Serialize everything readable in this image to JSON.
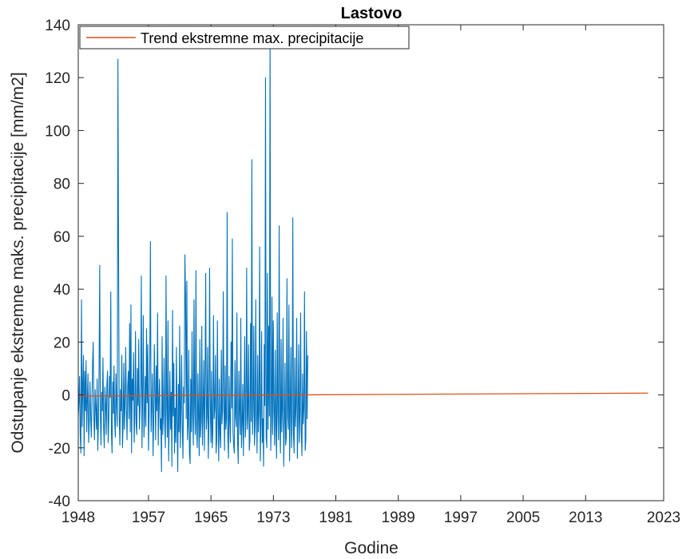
{
  "chart_data": {
    "type": "line",
    "title": "Lastovo",
    "xlabel": "Godine",
    "ylabel": "Odstupanje ekstremne maks. precipitacije [mm/m2]",
    "xlim": [
      1948,
      2023
    ],
    "ylim": [
      -40,
      140
    ],
    "x_ticks": [
      "1948",
      "1957",
      "1965",
      "1973",
      "1981",
      "1989",
      "1997",
      "2005",
      "2013",
      "2023"
    ],
    "y_ticks": [
      "-40",
      "-20",
      "0",
      "20",
      "40",
      "60",
      "80",
      "100",
      "120",
      "140"
    ],
    "legend": {
      "placement": "top-left",
      "entries": [
        "Trend ekstremne max. precipitacije"
      ]
    },
    "grid": false,
    "colors": {
      "series": "#0072BD",
      "trend": "#D95319"
    },
    "series": [
      {
        "name": "",
        "style": "monthly values",
        "x_start": 1948.0,
        "x_step": 0.0833,
        "values": [
          -8,
          -3,
          7,
          -15,
          -22,
          36,
          -12,
          4,
          15,
          -23,
          9,
          -6,
          13,
          -14,
          -2,
          8,
          -18,
          -10,
          5,
          -7,
          -16,
          -4,
          12,
          20,
          -9,
          -17,
          2,
          -5,
          -13,
          6,
          -21,
          -11,
          10,
          49,
          -8,
          -19,
          1,
          -6,
          14,
          -12,
          -20,
          3,
          -3,
          -15,
          4,
          9,
          -18,
          -9,
          7,
          -1,
          39,
          -14,
          -22,
          5,
          -7,
          11,
          -10,
          -16,
          8,
          -4,
          -12,
          127,
          51,
          -8,
          -19,
          2,
          -6,
          15,
          -20,
          -11,
          12,
          -13,
          -3,
          18,
          -5,
          -17,
          3,
          9,
          -9,
          27,
          -14,
          34,
          -22,
          6,
          -2,
          16,
          -18,
          -7,
          24,
          -11,
          -15,
          10,
          -4,
          21,
          -13,
          -6,
          4,
          45,
          -20,
          -1,
          30,
          -16,
          -9,
          7,
          -12,
          25,
          -3,
          19,
          -21,
          -8,
          13,
          58,
          -14,
          -5,
          8,
          -23,
          -10,
          19,
          2,
          -17,
          11,
          -6,
          31,
          -19,
          -2,
          6,
          -13,
          -9,
          -29,
          22,
          -15,
          -7,
          14,
          -11,
          -20,
          45,
          -4,
          -16,
          28,
          -25,
          -9,
          9,
          -13,
          1,
          -27,
          32,
          -8,
          12,
          -22,
          -5,
          -18,
          18,
          -10,
          -29,
          4,
          -14,
          26,
          -20,
          -6,
          15,
          -12,
          -24,
          3,
          -3,
          53,
          38,
          -9,
          43,
          -17,
          -11,
          17,
          -22,
          -26,
          6,
          -14,
          24,
          -7,
          -19,
          36,
          -4,
          -15,
          47,
          -12,
          -20,
          8,
          -8,
          -23,
          21,
          -16,
          -10,
          26,
          -19,
          -6,
          13,
          -21,
          4,
          46,
          -13,
          -8,
          18,
          -24,
          -11,
          48,
          -2,
          -18,
          9,
          -20,
          -14,
          30,
          -9,
          -5,
          15,
          -22,
          -17,
          28,
          -7,
          -25,
          6,
          -15,
          -20,
          17,
          -11,
          -6,
          39,
          -3,
          -21,
          11,
          -13,
          -9,
          69,
          -16,
          -24,
          7,
          -10,
          -18,
          20,
          -5,
          59,
          -14,
          -19,
          -22,
          13,
          -8,
          -12,
          31,
          -17,
          -26,
          9,
          -6,
          -15,
          29,
          -20,
          -11,
          4,
          -23,
          -4,
          22,
          -16,
          -9,
          48,
          -13,
          -7,
          19,
          -21,
          -17,
          27,
          -10,
          89,
          -15,
          -5,
          26,
          -19,
          -12,
          36,
          -8,
          -22,
          15,
          -14,
          -6,
          56,
          -25,
          -11,
          24,
          -18,
          -9,
          -27,
          19,
          -4,
          120,
          -16,
          -20,
          46,
          -13,
          26,
          -8,
          138,
          -21,
          -10,
          37,
          -15,
          28,
          -6,
          -19,
          17,
          -12,
          -24,
          31,
          -7,
          -17,
          64,
          -10,
          -22,
          21,
          -14,
          -5,
          29,
          -27,
          -11,
          12,
          -19,
          -16,
          44,
          -8,
          -13,
          34,
          -25,
          -6,
          18,
          -20,
          -9,
          67,
          -15,
          -22,
          14,
          -12,
          -4,
          29,
          -24,
          -10,
          19,
          -18,
          -7,
          31,
          -14,
          -23,
          8,
          -11,
          -5,
          39,
          -21,
          -17,
          24,
          -9,
          15
        ]
      },
      {
        "name": "Trend ekstremne max. precipitacije",
        "type": "linear",
        "x": [
          1948,
          2021
        ],
        "values": [
          -0.4,
          0.7
        ]
      }
    ]
  }
}
